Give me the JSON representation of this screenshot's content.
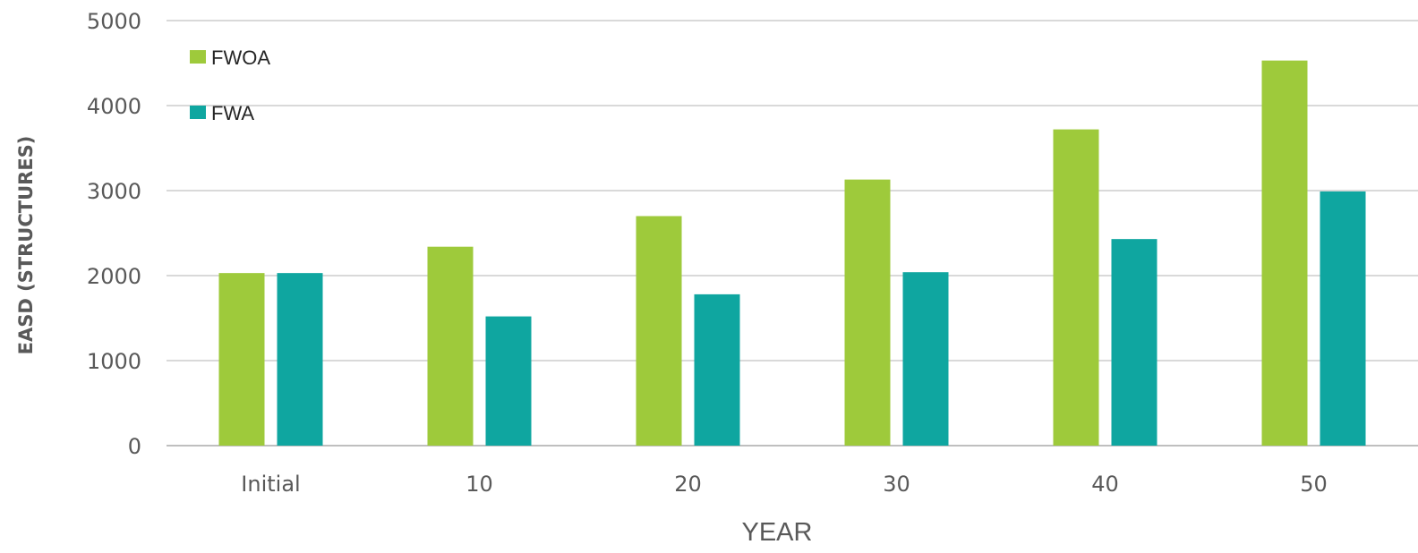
{
  "chart_data": {
    "type": "bar",
    "title": "",
    "xlabel": "YEAR",
    "ylabel": "EASD (STRUCTURES)",
    "categories": [
      "Initial",
      "10",
      "20",
      "30",
      "40",
      "50"
    ],
    "series": [
      {
        "name": "FWOA",
        "color": "#9ECA3B",
        "values": [
          2030,
          2340,
          2700,
          3130,
          3720,
          4530
        ]
      },
      {
        "name": "FWA",
        "color": "#0FA6A0",
        "values": [
          2030,
          1520,
          1780,
          2040,
          2430,
          2990
        ]
      }
    ],
    "ylim": [
      0,
      5000
    ],
    "yticks": [
      0,
      1000,
      2000,
      3000,
      4000,
      5000
    ],
    "grid": true,
    "legend_position": "top-left"
  }
}
